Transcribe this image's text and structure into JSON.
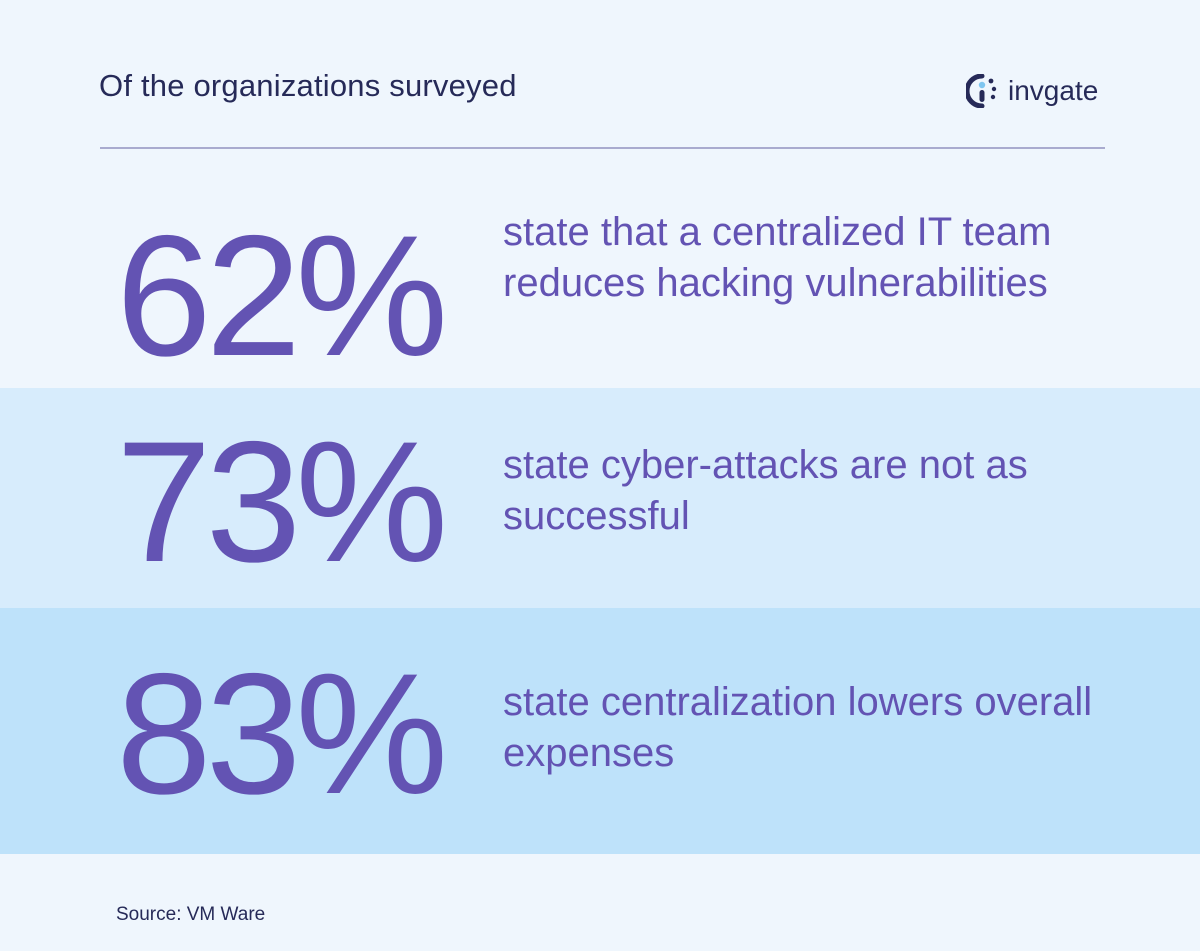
{
  "header": {
    "title": "Of the organizations surveyed",
    "logo_text": "invgate",
    "logo_icon": "invgate-logo-icon"
  },
  "stats": [
    {
      "percent": "62%",
      "description": "state that a centralized IT team reduces hacking vulnerabilities"
    },
    {
      "percent": "73%",
      "description": "state cyber-attacks are not as successful"
    },
    {
      "percent": "83%",
      "description": "state centralization lowers overall expenses"
    }
  ],
  "footer": {
    "source": "Source: VM Ware"
  },
  "colors": {
    "background": "#eff6fd",
    "band_light": "#d7ecfc",
    "band_mid": "#bee2fa",
    "accent": "#6353b3",
    "text_dark": "#262a58"
  }
}
